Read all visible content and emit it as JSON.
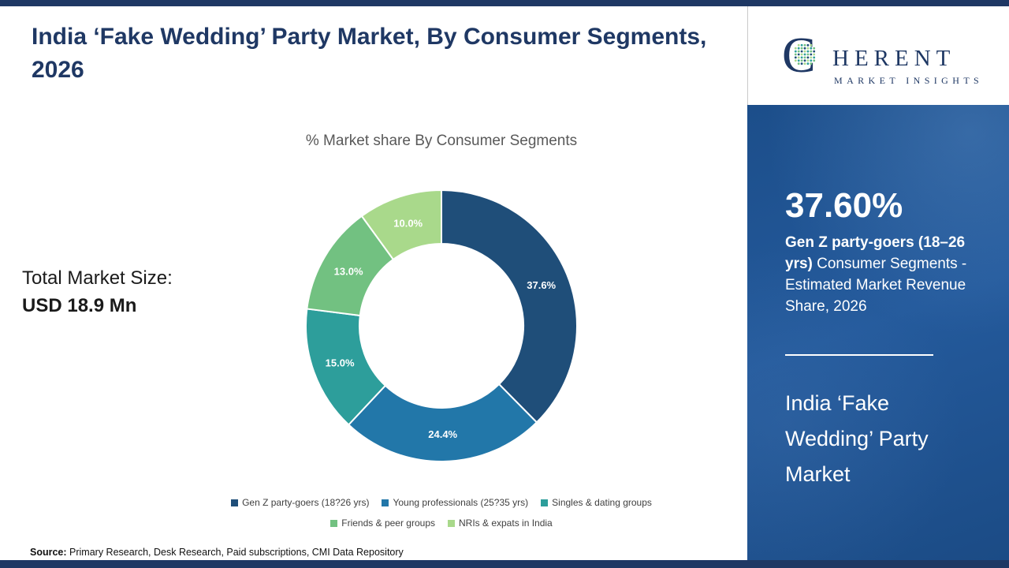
{
  "header": {
    "title": "India ‘Fake Wedding’ Party Market, By Consumer Segments, 2026"
  },
  "left": {
    "total_label": "Total Market Size:",
    "total_value": "USD 18.9 Mn",
    "source_label": "Source:",
    "source_text": " Primary Research, Desk Research, Paid subscriptions, CMI Data Repository"
  },
  "chart_data": {
    "type": "pie",
    "donut": true,
    "title": "% Market share By Consumer Segments",
    "start_angle_deg": -90,
    "direction": "clockwise",
    "legend_position": "bottom",
    "segments": [
      {
        "label": "Gen Z party-goers (18?26 yrs)",
        "value": 37.6,
        "display": "37.6%",
        "color": "#1f4e79"
      },
      {
        "label": "Young professionals (25?35 yrs)",
        "value": 24.4,
        "display": "24.4%",
        "color": "#2277a9"
      },
      {
        "label": "Singles & dating groups",
        "value": 15.0,
        "display": "15.0%",
        "color": "#2d9e9b"
      },
      {
        "label": "Friends & peer groups",
        "value": 13.0,
        "display": "13.0%",
        "color": "#72c181"
      },
      {
        "label": "NRIs & expats in India",
        "value": 10.0,
        "display": "10.0%",
        "color": "#a9d98b"
      }
    ]
  },
  "sidebar": {
    "logo_c": "C",
    "logo_rest": "HERENT",
    "logo_sub": "MARKET INSIGHTS",
    "stat_value": "37.60%",
    "stat_bold": "Gen Z party-goers (18–26 yrs)",
    "stat_rest": " Consumer Segments - Estimated Market Revenue Share, 2026",
    "market_name": "India ‘Fake Wedding’ Party Market"
  },
  "colors": {
    "frame_navy": "#1f3864",
    "panel_blue": "#1d4e89",
    "globe_palette": [
      "#2d9e9b",
      "#72c181",
      "#1f4e79",
      "#a9d98b"
    ]
  }
}
